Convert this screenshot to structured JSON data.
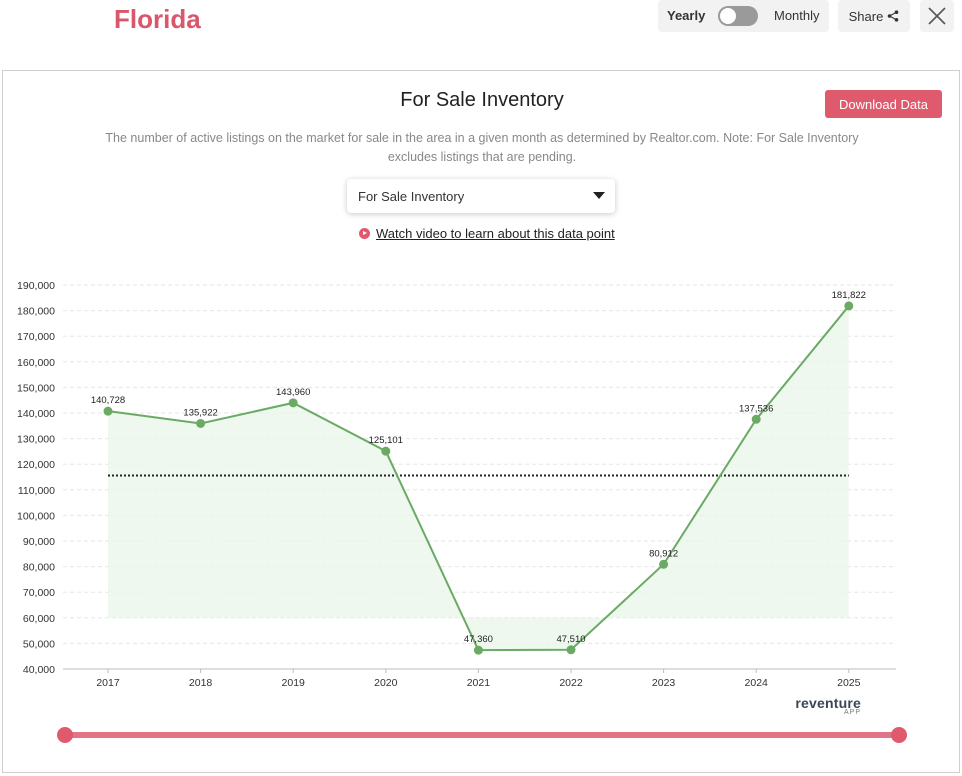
{
  "header": {
    "region": "Florida",
    "toggle": {
      "yearly_label": "Yearly",
      "monthly_label": "Monthly",
      "selected": "Yearly"
    },
    "share_label": "Share"
  },
  "card": {
    "title": "For Sale Inventory",
    "download_label": "Download Data",
    "description": "The number of active listings on the market for sale in the area in a given month as determined by Realtor.com. Note: For Sale Inventory excludes listings that are pending.",
    "metric_select": {
      "value": "For Sale Inventory"
    },
    "video_link": "Watch video to learn about this data point",
    "brand": {
      "name": "reventure",
      "sub": "APP"
    }
  },
  "chart_data": {
    "type": "line",
    "title": "For Sale Inventory",
    "categories": [
      "2017",
      "2018",
      "2019",
      "2020",
      "2021",
      "2022",
      "2023",
      "2024",
      "2025"
    ],
    "series": [
      {
        "values": [
          140728,
          135922,
          143960,
          125101,
          47360,
          47510,
          80912,
          137536,
          181822
        ]
      }
    ],
    "data_labels": [
      "140,728",
      "135,922",
      "143,960",
      "125,101",
      "47,360",
      "47,510",
      "80,912",
      "137,536",
      "181,822"
    ],
    "average_line": 115600,
    "ylim": [
      40000,
      190000
    ],
    "y_ticks": [
      40000,
      50000,
      60000,
      70000,
      80000,
      90000,
      100000,
      110000,
      120000,
      130000,
      140000,
      150000,
      160000,
      170000,
      180000,
      190000
    ],
    "y_tick_labels": [
      "40,000",
      "50,000",
      "60,000",
      "70,000",
      "80,000",
      "90,000",
      "100,000",
      "110,000",
      "120,000",
      "130,000",
      "140,000",
      "150,000",
      "160,000",
      "170,000",
      "180,000",
      "190,000"
    ],
    "grid": true,
    "colors": {
      "line": "#6aaa64",
      "area": "#eaf5e8",
      "average": "#222222"
    }
  },
  "slider": {
    "start": "2017",
    "end": "2025"
  }
}
